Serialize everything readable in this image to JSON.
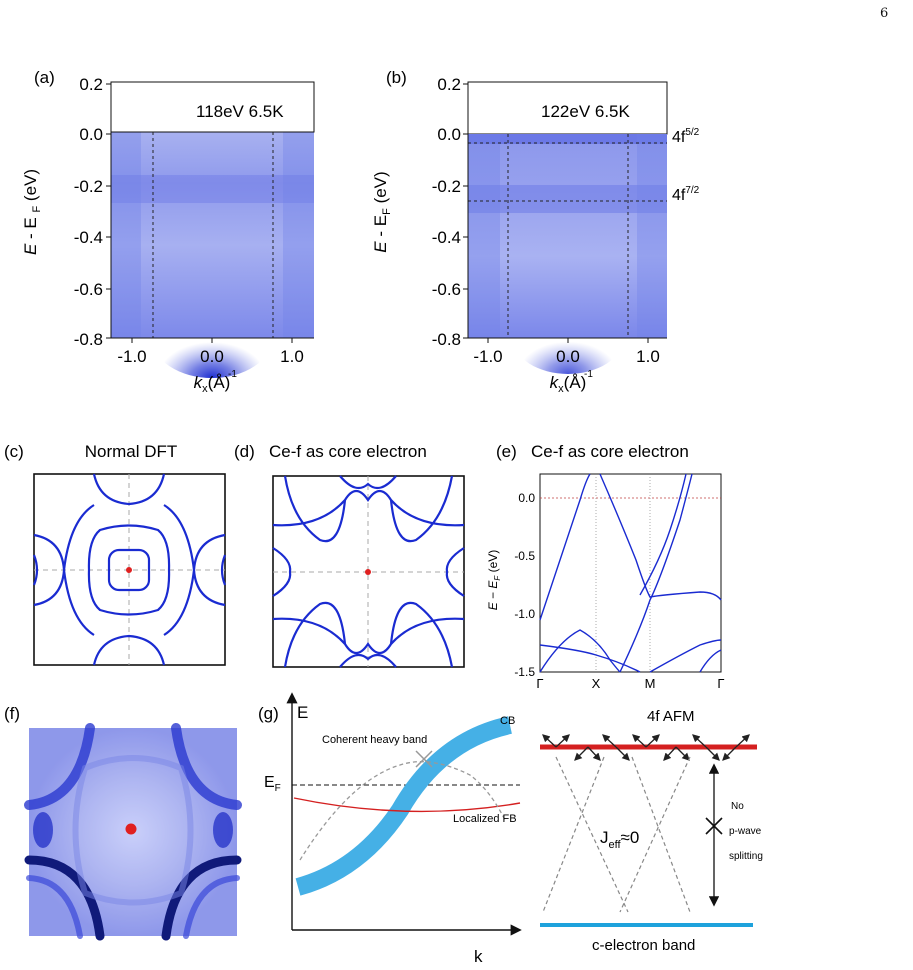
{
  "page_number": "6",
  "panels": {
    "a": {
      "label": "(a)",
      "condition": "118eV 6.5K",
      "ylabel_E": "E",
      "ylabel_rest": " - E",
      "ylabel_sub": "F",
      "ylabel_unit": " (eV)",
      "yticks": [
        "0.2",
        "0.0",
        "-0.2",
        "-0.4",
        "-0.6",
        "-0.8"
      ],
      "xticks": [
        "-1.0",
        "0.0",
        "1.0"
      ],
      "xlabel_k": "k",
      "xlabel_sub": "x",
      "xlabel_unit": "(Å)",
      "xlabel_sup": "-1"
    },
    "b": {
      "label": "(b)",
      "condition": "122eV 6.5K",
      "ylabel_E": "E",
      "ylabel_rest": " - E",
      "ylabel_sub": "F",
      "ylabel_unit": " (eV)",
      "yticks": [
        "0.2",
        "0.0",
        "-0.2",
        "-0.4",
        "-0.6",
        "-0.8"
      ],
      "xticks": [
        "-1.0",
        "0.0",
        "1.0"
      ],
      "xlabel_k": "k",
      "xlabel_sub": "x",
      "xlabel_unit": "(Å)",
      "xlabel_sup": "-1",
      "line1_base": "4f",
      "line1_sup": "5/2",
      "line2_base": "4f",
      "line2_sup": "7/2"
    },
    "c": {
      "label": "(c)",
      "title": "Normal DFT"
    },
    "d": {
      "label": "(d)",
      "title": "Ce-f as core electron"
    },
    "e": {
      "label": "(e)",
      "title": "Ce-f as core electron",
      "ylabel": "E − E",
      "ylabel_sub": "F",
      "ylabel_unit": " (eV)",
      "yticks": [
        "0.0",
        "-0.5",
        "-1.0",
        "-1.5"
      ],
      "xticks": [
        "Γ",
        "X",
        "M",
        "Γ"
      ]
    },
    "f": {
      "label": "(f)"
    },
    "g": {
      "label": "(g)",
      "yaxis": "E",
      "xaxis": "k",
      "ef_base": "E",
      "ef_sub": "F",
      "cb": "CB",
      "coherent": "Coherent heavy band",
      "localized": "Localized FB",
      "afm": "4f AFM",
      "jeff_base": "J",
      "jeff_sub": "eff",
      "jeff_rest": "≈0",
      "no": "No",
      "pwave": "p-wave",
      "splitting": "splitting",
      "cband": "c-electron band"
    }
  },
  "colors": {
    "band": "#1a2bd1",
    "arpes": "#5060e8",
    "cb": "#45b0e6",
    "fb": "#d42020",
    "afm": "#d42020",
    "cel": "#1ea2dc"
  }
}
